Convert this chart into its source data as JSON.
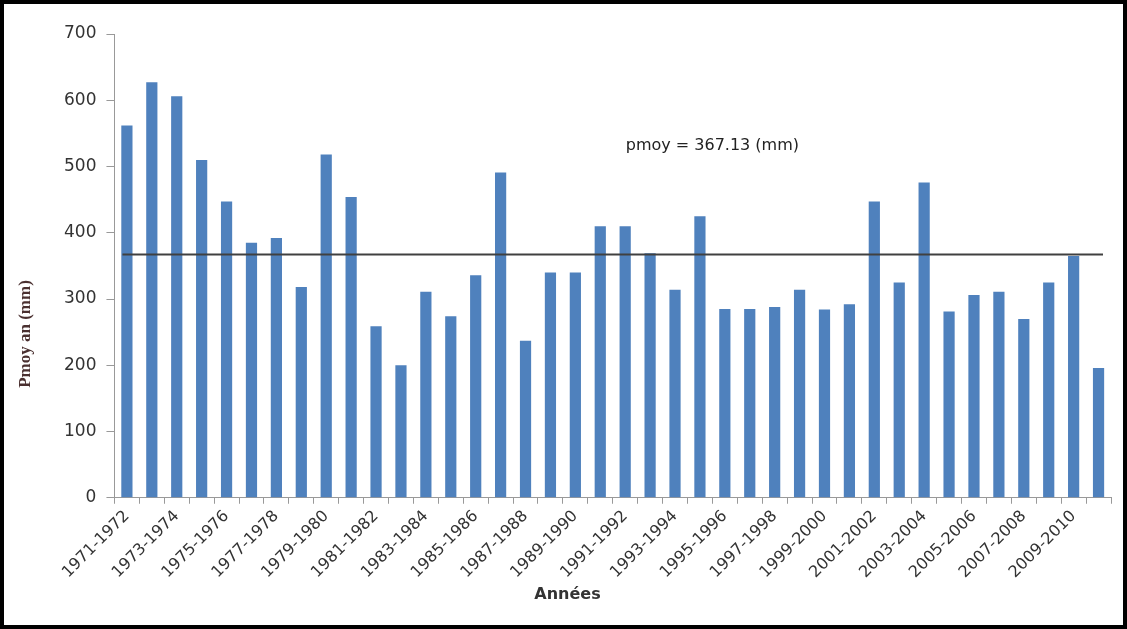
{
  "chart_data": {
    "type": "bar",
    "xlabel": "Années",
    "ylabel": "Pmoy an (mm)",
    "categories": [
      "1971-1972",
      null,
      "1973-1974",
      null,
      "1975-1976",
      null,
      "1977-1978",
      null,
      "1979-1980",
      null,
      "1981-1982",
      null,
      "1983-1984",
      null,
      "1985-1986",
      null,
      "1987-1988",
      null,
      "1989-1990",
      null,
      "1991-1992",
      null,
      "1993-1994",
      null,
      "1995-1996",
      null,
      "1997-1998",
      null,
      "1999-2000",
      null,
      "2001-2002",
      null,
      "2003-2004",
      null,
      "2005-2006",
      null,
      "2007-2008",
      null,
      "2009-2010",
      null
    ],
    "values": [
      562,
      627,
      606,
      510,
      447,
      385,
      392,
      318,
      518,
      454,
      259,
      200,
      311,
      274,
      336,
      491,
      237,
      340,
      340,
      410,
      410,
      369,
      314,
      425,
      285,
      285,
      288,
      314,
      284,
      292,
      447,
      325,
      476,
      281,
      306,
      311,
      270,
      325,
      365,
      196
    ],
    "color": "#4f81bd",
    "ylim": [
      0,
      700
    ],
    "yticks": [
      0,
      100,
      200,
      300,
      400,
      500,
      600,
      700
    ],
    "ref_lines": [
      {
        "axis": "y",
        "value": 367.13,
        "label": "pmoy = 367.13 (mm)",
        "color": "#404040"
      }
    ]
  }
}
